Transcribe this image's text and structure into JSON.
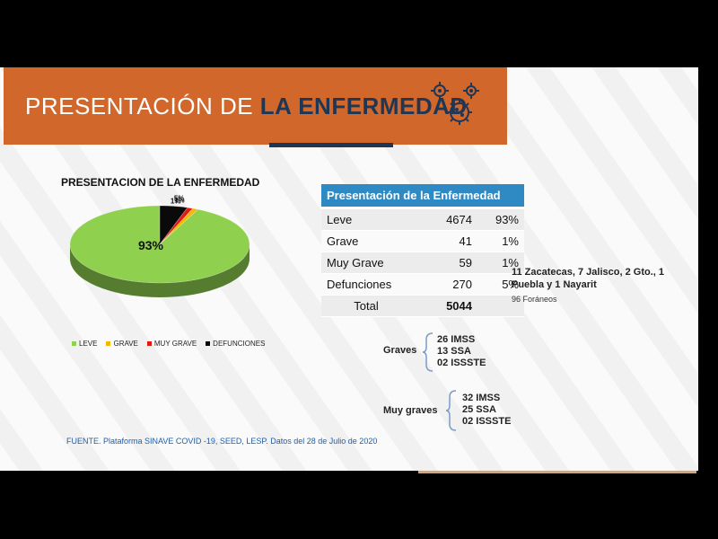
{
  "header": {
    "title_light": "PRESENTACIÓN DE ",
    "title_bold": "LA ENFERMEDAD"
  },
  "chart_data": {
    "type": "pie",
    "title": "PRESENTACION DE LA ENFERMEDAD",
    "categories": [
      "LEVE",
      "GRAVE",
      "MUY GRAVE",
      "DEFUNCIONES"
    ],
    "values": [
      93,
      1,
      1,
      5
    ],
    "labels": [
      "93%",
      "1%",
      "1%",
      "5%"
    ],
    "colors": [
      "#8fd14f",
      "#f5b800",
      "#e11b14",
      "#0a0a0a"
    ],
    "legend_position": "bottom"
  },
  "table": {
    "header": "Presentación de la Enfermedad",
    "rows": [
      {
        "label": "Leve",
        "count": "4674",
        "pct": "93%"
      },
      {
        "label": "Grave",
        "count": "41",
        "pct": "1%"
      },
      {
        "label": "Muy Grave",
        "count": "59",
        "pct": "1%"
      },
      {
        "label": "Defunciones",
        "count": "270",
        "pct": "5%"
      }
    ],
    "total_label": "Total",
    "total_value": "5044"
  },
  "notes": {
    "states": "11 Zacatecas, 7 Jalisco, 2 Gto., 1 Puebla y 1 Nayarit",
    "foraneos": "96 Foráneos"
  },
  "graves": {
    "label": "Graves",
    "items": [
      "26 IMSS",
      "13 SSA",
      "02 ISSSTE"
    ]
  },
  "muy_graves": {
    "label": "Muy graves",
    "items": [
      "32 IMSS",
      "25 SSA",
      "02 ISSSTE"
    ]
  },
  "footer": {
    "source": "FUENTE. Plataforma SINAVE COVID -19, SEED, LESP. Datos del 28 de Julio de 2020"
  }
}
